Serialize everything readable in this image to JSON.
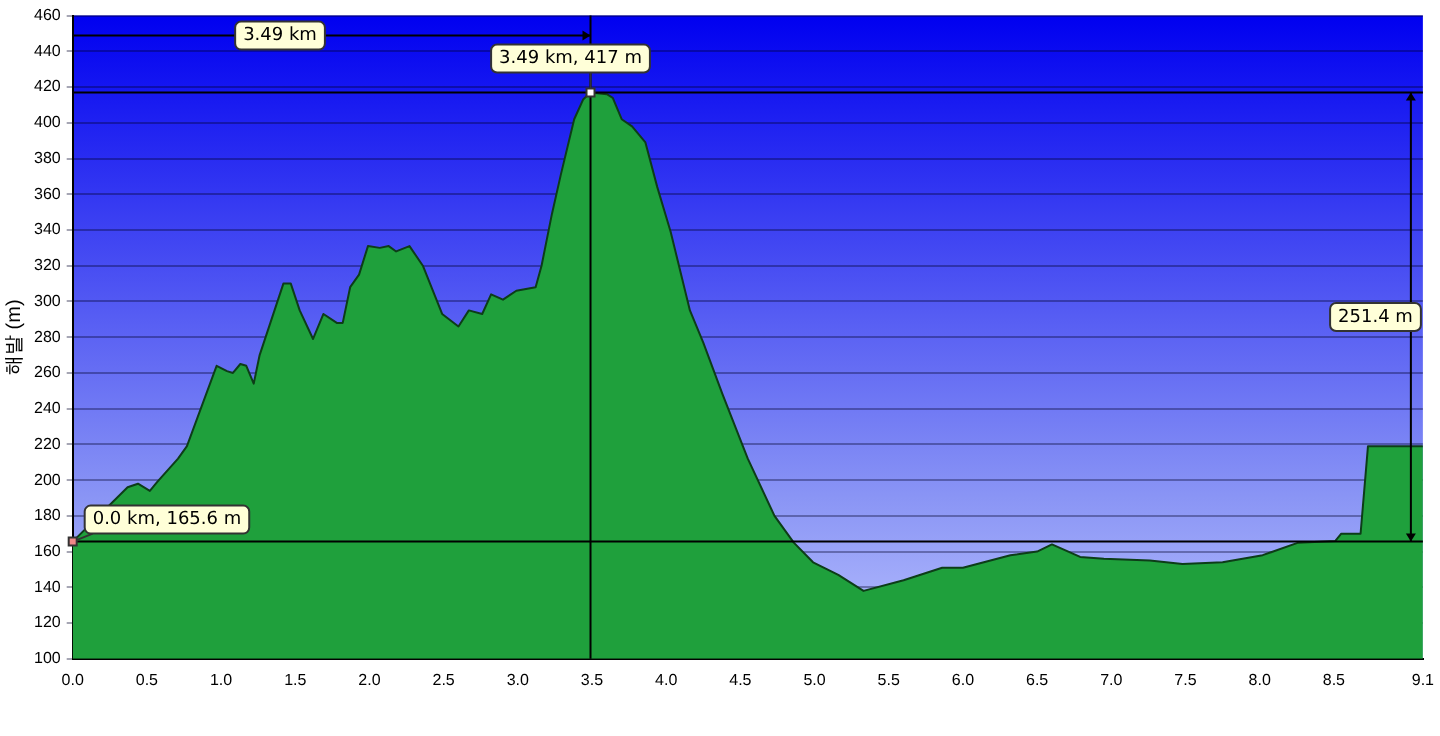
{
  "chart_data": {
    "type": "area",
    "ylabel": "해발 (m)",
    "x": [
      0,
      0.37,
      0.44,
      0.52,
      0.57,
      0.71,
      0.77,
      0.93,
      0.97,
      1.04,
      1.08,
      1.13,
      1.17,
      1.22,
      1.26,
      1.42,
      1.47,
      1.53,
      1.62,
      1.69,
      1.78,
      1.82,
      1.87,
      1.93,
      1.99,
      2.07,
      2.13,
      2.18,
      2.27,
      2.36,
      2.49,
      2.6,
      2.67,
      2.76,
      2.82,
      2.9,
      2.99,
      3.12,
      3.16,
      3.23,
      3.29,
      3.38,
      3.44,
      3.49,
      3.6,
      3.64,
      3.7,
      3.77,
      3.86,
      3.94,
      4.03,
      4.16,
      4.25,
      4.38,
      4.55,
      4.73,
      4.86,
      4.99,
      5.16,
      5.33,
      5.6,
      5.86,
      6.0,
      6.32,
      6.5,
      6.6,
      6.79,
      6.95,
      7.26,
      7.48,
      7.75,
      8.02,
      8.26,
      8.51,
      8.55,
      8.68,
      8.73,
      9.07,
      9.1
    ],
    "series": [
      {
        "color": "#1fa03c",
        "values": [
          165.6,
          196,
          198,
          194,
          199,
          212,
          219,
          255,
          264,
          261,
          260,
          265,
          264,
          254,
          270,
          310,
          310,
          295,
          279,
          293,
          288,
          288,
          308,
          315,
          331,
          330,
          331,
          328,
          331,
          320,
          293,
          286,
          295,
          293,
          304,
          301,
          306,
          308,
          320,
          349,
          371,
          402,
          413,
          417,
          416,
          414,
          402,
          398,
          389,
          364,
          339,
          295,
          277,
          248,
          212,
          180,
          165,
          154,
          147,
          138,
          144,
          151,
          151,
          158,
          160,
          164,
          157,
          156,
          155,
          153,
          154,
          158,
          165,
          166,
          170,
          170,
          219,
          219,
          219
        ]
      }
    ],
    "xlim": [
      0,
      9.1
    ],
    "xticks": [
      {
        "value": 0,
        "label": "0.0"
      },
      0.5,
      {
        "value": 1,
        "label": "1.0"
      },
      1.5,
      {
        "value": 2,
        "label": "2.0"
      },
      2.5,
      {
        "value": 3,
        "label": "3.0"
      },
      3.5,
      {
        "value": 4,
        "label": "4.0"
      },
      4.5,
      {
        "value": 5,
        "label": "5.0"
      },
      5.5,
      {
        "value": 6,
        "label": "6.0"
      },
      6.5,
      {
        "value": 7,
        "label": "7.0"
      },
      7.5,
      {
        "value": 8,
        "label": "8.0"
      },
      8.5,
      9.1
    ],
    "ylim": [
      100,
      460
    ],
    "yticks": [
      100,
      120,
      140,
      160,
      180,
      200,
      220,
      240,
      260,
      280,
      300,
      320,
      340,
      360,
      380,
      400,
      420,
      440,
      460
    ],
    "grid": "y",
    "legend": false,
    "marker": "none",
    "ref_lines": [
      {
        "axis": "x",
        "value": 3.49,
        "label": "3.49 km"
      },
      {
        "axis": "y",
        "value": 417
      },
      {
        "axis": "y",
        "value": 165.6
      }
    ],
    "annotations": [
      {
        "text": "0.0 km, 165.6 m",
        "x": 0,
        "y": 165.6
      },
      {
        "text": "3.49 km, 417 m",
        "x": 3.49,
        "y": 417
      },
      "251.4 m"
    ]
  }
}
